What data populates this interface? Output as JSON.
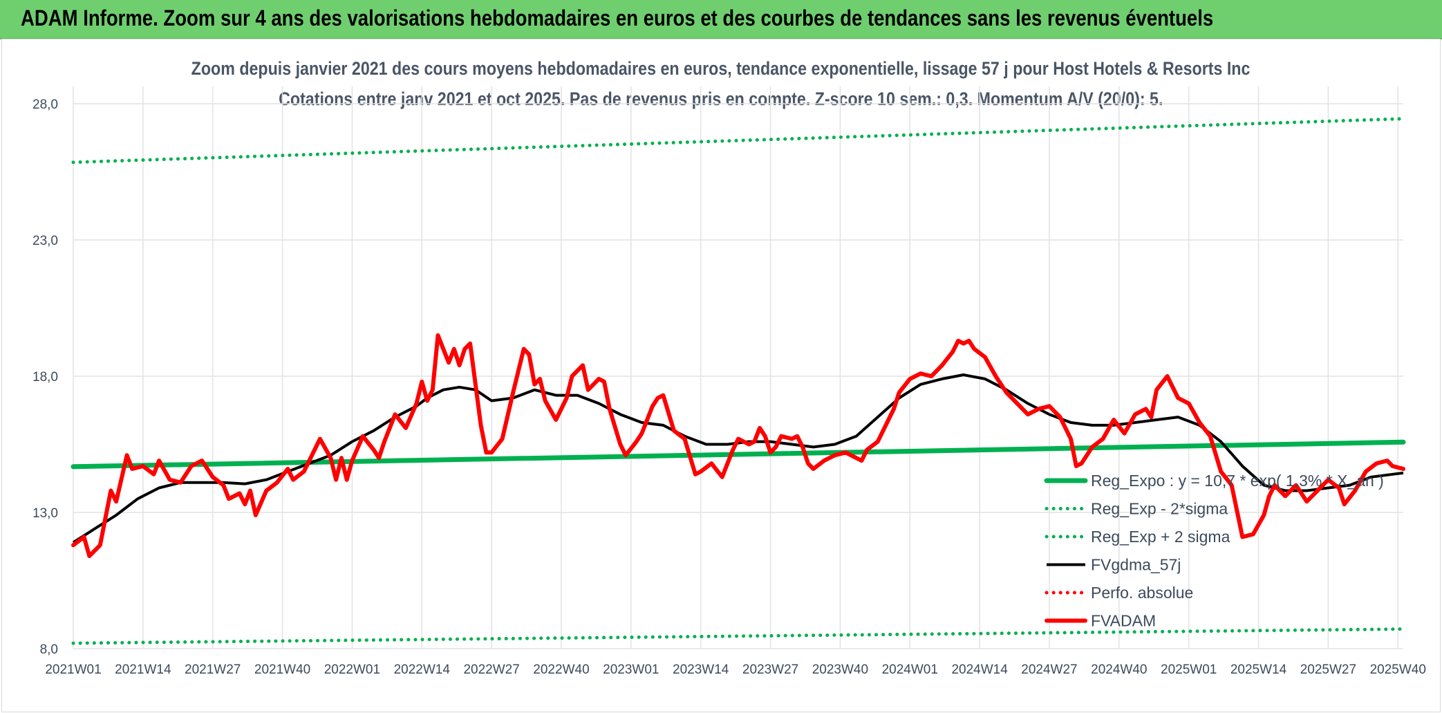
{
  "header": {
    "title": "ADAM Informe. Zoom sur 4 ans des valorisations hebdomadaires en euros et des courbes de tendances sans les revenus éventuels"
  },
  "chart_data": {
    "type": "line",
    "title": "Zoom depuis janvier 2021 des cours moyens hebdomadaires en euros, tendance exponentielle, lissage 57 j pour Host Hotels & Resorts Inc",
    "subtitle": "Cotations entre janv 2021 et oct 2025. Pas de revenus pris en compte. Z-score 10 sem.: 0,3. Momentum A/V (20/0): 5.",
    "xlabel": "",
    "ylabel": "",
    "ylim": [
      8.0,
      28.0
    ],
    "y_ticks": [
      "8,0",
      "13,0",
      "18,0",
      "23,0",
      "28,0"
    ],
    "y_tick_values": [
      8.0,
      13.0,
      18.0,
      23.0,
      28.0
    ],
    "x_range": [
      0,
      248
    ],
    "x_ticks": [
      "2021W01",
      "2021W14",
      "2021W27",
      "2021W40",
      "2022W01",
      "2022W14",
      "2022W27",
      "2022W40",
      "2023W01",
      "2023W14",
      "2023W27",
      "2023W40",
      "2024W01",
      "2024W14",
      "2024W27",
      "2024W40",
      "2025W01",
      "2025W14",
      "2025W27",
      "2025W40"
    ],
    "x_tick_values": [
      0,
      13,
      26,
      39,
      52,
      65,
      78,
      91,
      104,
      117,
      130,
      143,
      156,
      169,
      182,
      195,
      208,
      221,
      234,
      247
    ],
    "grid": true,
    "legend_position": "bottom-right",
    "series": [
      {
        "name": "Reg_Expo : y = 10,7 * exp( 1,3% *  X_an )",
        "color": "#00b050",
        "style": "solid-thick",
        "points": [
          [
            0,
            14.68
          ],
          [
            248,
            15.58
          ]
        ]
      },
      {
        "name": "Reg_Exp - 2*sigma",
        "color": "#00b050",
        "style": "dotted",
        "points": [
          [
            0,
            8.2
          ],
          [
            248,
            8.72
          ]
        ]
      },
      {
        "name": "Reg_Exp + 2 sigma",
        "color": "#00b050",
        "style": "dotted",
        "points": [
          [
            0,
            25.85
          ],
          [
            248,
            27.45
          ]
        ]
      },
      {
        "name": "FVgdma_57j",
        "color": "#000000",
        "style": "solid",
        "points": [
          [
            0,
            11.9
          ],
          [
            4,
            12.4
          ],
          [
            8,
            12.9
          ],
          [
            12,
            13.5
          ],
          [
            16,
            13.9
          ],
          [
            20,
            14.1
          ],
          [
            24,
            14.1
          ],
          [
            28,
            14.1
          ],
          [
            32,
            14.05
          ],
          [
            36,
            14.2
          ],
          [
            40,
            14.5
          ],
          [
            44,
            14.8
          ],
          [
            48,
            15.1
          ],
          [
            52,
            15.6
          ],
          [
            56,
            16.0
          ],
          [
            60,
            16.5
          ],
          [
            64,
            16.9
          ],
          [
            66,
            17.2
          ],
          [
            69,
            17.5
          ],
          [
            72,
            17.6
          ],
          [
            75,
            17.5
          ],
          [
            78,
            17.1
          ],
          [
            82,
            17.2
          ],
          [
            86,
            17.5
          ],
          [
            90,
            17.3
          ],
          [
            94,
            17.3
          ],
          [
            98,
            17.0
          ],
          [
            102,
            16.6
          ],
          [
            106,
            16.3
          ],
          [
            110,
            16.2
          ],
          [
            114,
            15.8
          ],
          [
            118,
            15.5
          ],
          [
            122,
            15.5
          ],
          [
            126,
            15.6
          ],
          [
            130,
            15.6
          ],
          [
            134,
            15.5
          ],
          [
            138,
            15.4
          ],
          [
            142,
            15.5
          ],
          [
            146,
            15.8
          ],
          [
            150,
            16.5
          ],
          [
            154,
            17.2
          ],
          [
            158,
            17.7
          ],
          [
            162,
            17.9
          ],
          [
            166,
            18.05
          ],
          [
            170,
            17.9
          ],
          [
            174,
            17.5
          ],
          [
            178,
            17.0
          ],
          [
            182,
            16.6
          ],
          [
            186,
            16.3
          ],
          [
            190,
            16.2
          ],
          [
            194,
            16.2
          ],
          [
            198,
            16.3
          ],
          [
            202,
            16.4
          ],
          [
            206,
            16.5
          ],
          [
            210,
            16.2
          ],
          [
            214,
            15.6
          ],
          [
            218,
            14.7
          ],
          [
            222,
            14.0
          ],
          [
            226,
            13.8
          ],
          [
            230,
            13.8
          ],
          [
            234,
            13.9
          ],
          [
            238,
            14.0
          ],
          [
            242,
            14.3
          ],
          [
            246,
            14.4
          ],
          [
            248,
            14.45
          ]
        ]
      },
      {
        "name": "Perfo. absolue",
        "color": "#ff0000",
        "style": "dotted",
        "points": []
      },
      {
        "name": "FVADAM",
        "color": "#ff0000",
        "style": "solid-thick",
        "points": [
          [
            0,
            11.8
          ],
          [
            2,
            12.1
          ],
          [
            3,
            11.4
          ],
          [
            5,
            11.8
          ],
          [
            7,
            13.8
          ],
          [
            8,
            13.4
          ],
          [
            10,
            15.1
          ],
          [
            11,
            14.6
          ],
          [
            13,
            14.7
          ],
          [
            15,
            14.4
          ],
          [
            16,
            14.9
          ],
          [
            18,
            14.2
          ],
          [
            20,
            14.1
          ],
          [
            22,
            14.7
          ],
          [
            24,
            14.9
          ],
          [
            26,
            14.3
          ],
          [
            28,
            14.0
          ],
          [
            29,
            13.5
          ],
          [
            31,
            13.7
          ],
          [
            32,
            13.3
          ],
          [
            33,
            13.8
          ],
          [
            34,
            12.9
          ],
          [
            36,
            13.8
          ],
          [
            38,
            14.1
          ],
          [
            40,
            14.6
          ],
          [
            41,
            14.2
          ],
          [
            43,
            14.5
          ],
          [
            45,
            15.3
          ],
          [
            46,
            15.7
          ],
          [
            48,
            15.0
          ],
          [
            49,
            14.2
          ],
          [
            50,
            15.0
          ],
          [
            51,
            14.2
          ],
          [
            52,
            14.9
          ],
          [
            54,
            15.8
          ],
          [
            56,
            15.3
          ],
          [
            57,
            15.0
          ],
          [
            58,
            15.6
          ],
          [
            60,
            16.6
          ],
          [
            62,
            16.1
          ],
          [
            64,
            17.0
          ],
          [
            65,
            17.8
          ],
          [
            66,
            17.1
          ],
          [
            67,
            17.5
          ],
          [
            68,
            19.5
          ],
          [
            70,
            18.5
          ],
          [
            71,
            19.0
          ],
          [
            72,
            18.4
          ],
          [
            73,
            19.0
          ],
          [
            74,
            19.2
          ],
          [
            76,
            16.2
          ],
          [
            77,
            15.2
          ],
          [
            78,
            15.2
          ],
          [
            80,
            15.7
          ],
          [
            82,
            17.4
          ],
          [
            84,
            19.0
          ],
          [
            85,
            18.8
          ],
          [
            86,
            17.7
          ],
          [
            87,
            17.9
          ],
          [
            88,
            17.1
          ],
          [
            90,
            16.4
          ],
          [
            92,
            17.2
          ],
          [
            93,
            18.0
          ],
          [
            95,
            18.4
          ],
          [
            96,
            17.5
          ],
          [
            98,
            17.9
          ],
          [
            99,
            17.8
          ],
          [
            100,
            16.8
          ],
          [
            102,
            15.5
          ],
          [
            103,
            15.1
          ],
          [
            105,
            15.6
          ],
          [
            106,
            15.9
          ],
          [
            108,
            16.9
          ],
          [
            109,
            17.2
          ],
          [
            110,
            17.3
          ],
          [
            112,
            16.0
          ],
          [
            114,
            15.7
          ],
          [
            116,
            14.4
          ],
          [
            117,
            14.5
          ],
          [
            119,
            14.8
          ],
          [
            121,
            14.3
          ],
          [
            123,
            15.3
          ],
          [
            124,
            15.7
          ],
          [
            126,
            15.5
          ],
          [
            127,
            15.6
          ],
          [
            128,
            16.1
          ],
          [
            129,
            15.8
          ],
          [
            130,
            15.2
          ],
          [
            131,
            15.4
          ],
          [
            132,
            15.8
          ],
          [
            134,
            15.7
          ],
          [
            135,
            15.8
          ],
          [
            136,
            15.4
          ],
          [
            137,
            14.8
          ],
          [
            138,
            14.6
          ],
          [
            140,
            14.9
          ],
          [
            142,
            15.1
          ],
          [
            144,
            15.2
          ],
          [
            146,
            15.0
          ],
          [
            147,
            14.9
          ],
          [
            148,
            15.3
          ],
          [
            150,
            15.6
          ],
          [
            151,
            16.0
          ],
          [
            153,
            16.8
          ],
          [
            154,
            17.4
          ],
          [
            156,
            17.9
          ],
          [
            158,
            18.1
          ],
          [
            160,
            18.0
          ],
          [
            162,
            18.4
          ],
          [
            164,
            18.9
          ],
          [
            165,
            19.3
          ],
          [
            166,
            19.2
          ],
          [
            167,
            19.3
          ],
          [
            168,
            19.0
          ],
          [
            170,
            18.7
          ],
          [
            172,
            18.0
          ],
          [
            174,
            17.4
          ],
          [
            176,
            17.0
          ],
          [
            178,
            16.6
          ],
          [
            180,
            16.8
          ],
          [
            182,
            16.9
          ],
          [
            184,
            16.5
          ],
          [
            186,
            15.7
          ],
          [
            187,
            14.7
          ],
          [
            188,
            14.8
          ],
          [
            190,
            15.4
          ],
          [
            192,
            15.7
          ],
          [
            194,
            16.4
          ],
          [
            196,
            15.9
          ],
          [
            198,
            16.6
          ],
          [
            200,
            16.8
          ],
          [
            201,
            16.5
          ],
          [
            202,
            17.5
          ],
          [
            204,
            18.0
          ],
          [
            206,
            17.2
          ],
          [
            208,
            17.0
          ],
          [
            210,
            16.3
          ],
          [
            212,
            15.8
          ],
          [
            214,
            14.5
          ],
          [
            216,
            14.0
          ],
          [
            218,
            12.1
          ],
          [
            220,
            12.2
          ],
          [
            222,
            12.9
          ],
          [
            223,
            13.6
          ],
          [
            224,
            14.0
          ],
          [
            226,
            13.6
          ],
          [
            228,
            14.0
          ],
          [
            230,
            13.4
          ],
          [
            232,
            13.8
          ],
          [
            234,
            14.2
          ],
          [
            236,
            13.9
          ],
          [
            237,
            13.3
          ],
          [
            239,
            13.8
          ],
          [
            241,
            14.5
          ],
          [
            243,
            14.8
          ],
          [
            245,
            14.9
          ],
          [
            246,
            14.7
          ],
          [
            248,
            14.6
          ]
        ]
      }
    ]
  }
}
